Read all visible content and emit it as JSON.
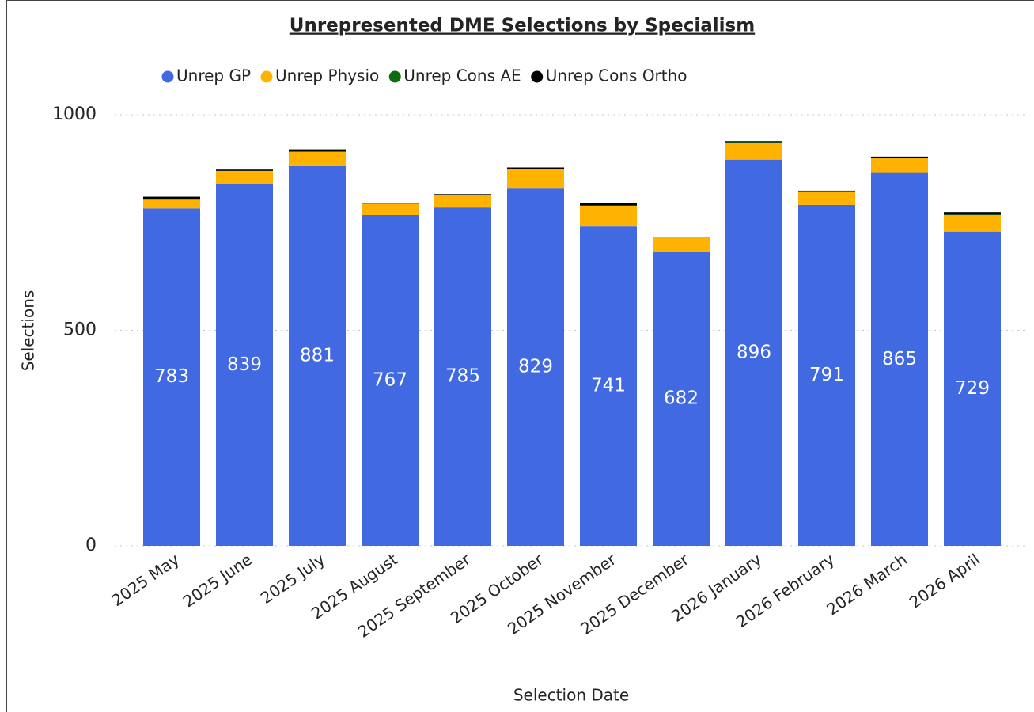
{
  "chart_data": {
    "type": "stacked_bar",
    "title": "Unrepresented DME Selections by Specialism",
    "x_label": "Selection Date",
    "y_label": "Selections",
    "categories": [
      "2025 May",
      "2025 June",
      "2025 July",
      "2025 August",
      "2025 September",
      "2025 October",
      "2025 November",
      "2025 December",
      "2026 January",
      "2026 February",
      "2026 March",
      "2026 April"
    ],
    "series": [
      {
        "name": "Unrep GP",
        "color": "#4169e1",
        "show_labels": true,
        "values": [
          783,
          839,
          881,
          767,
          785,
          829,
          741,
          682,
          896,
          791,
          865,
          729
        ]
      },
      {
        "name": "Unrep Physio",
        "color": "#ffb300",
        "values": [
          20,
          31,
          33,
          27,
          29,
          45,
          48,
          34,
          38,
          30,
          34,
          38
        ]
      },
      {
        "name": "Unrep Cons AE",
        "color": "#0a6e0a",
        "values": [
          1,
          0,
          1,
          0,
          0,
          1,
          1,
          0,
          1,
          0,
          0,
          1
        ]
      },
      {
        "name": "Unrep Cons Ortho",
        "color": "#000000",
        "values": [
          6,
          3,
          5,
          2,
          2,
          3,
          5,
          1,
          4,
          3,
          4,
          6
        ]
      }
    ],
    "ylim": [
      0,
      1000
    ],
    "yticks": [
      0,
      500,
      1000
    ],
    "grid": true,
    "legend": "top"
  }
}
